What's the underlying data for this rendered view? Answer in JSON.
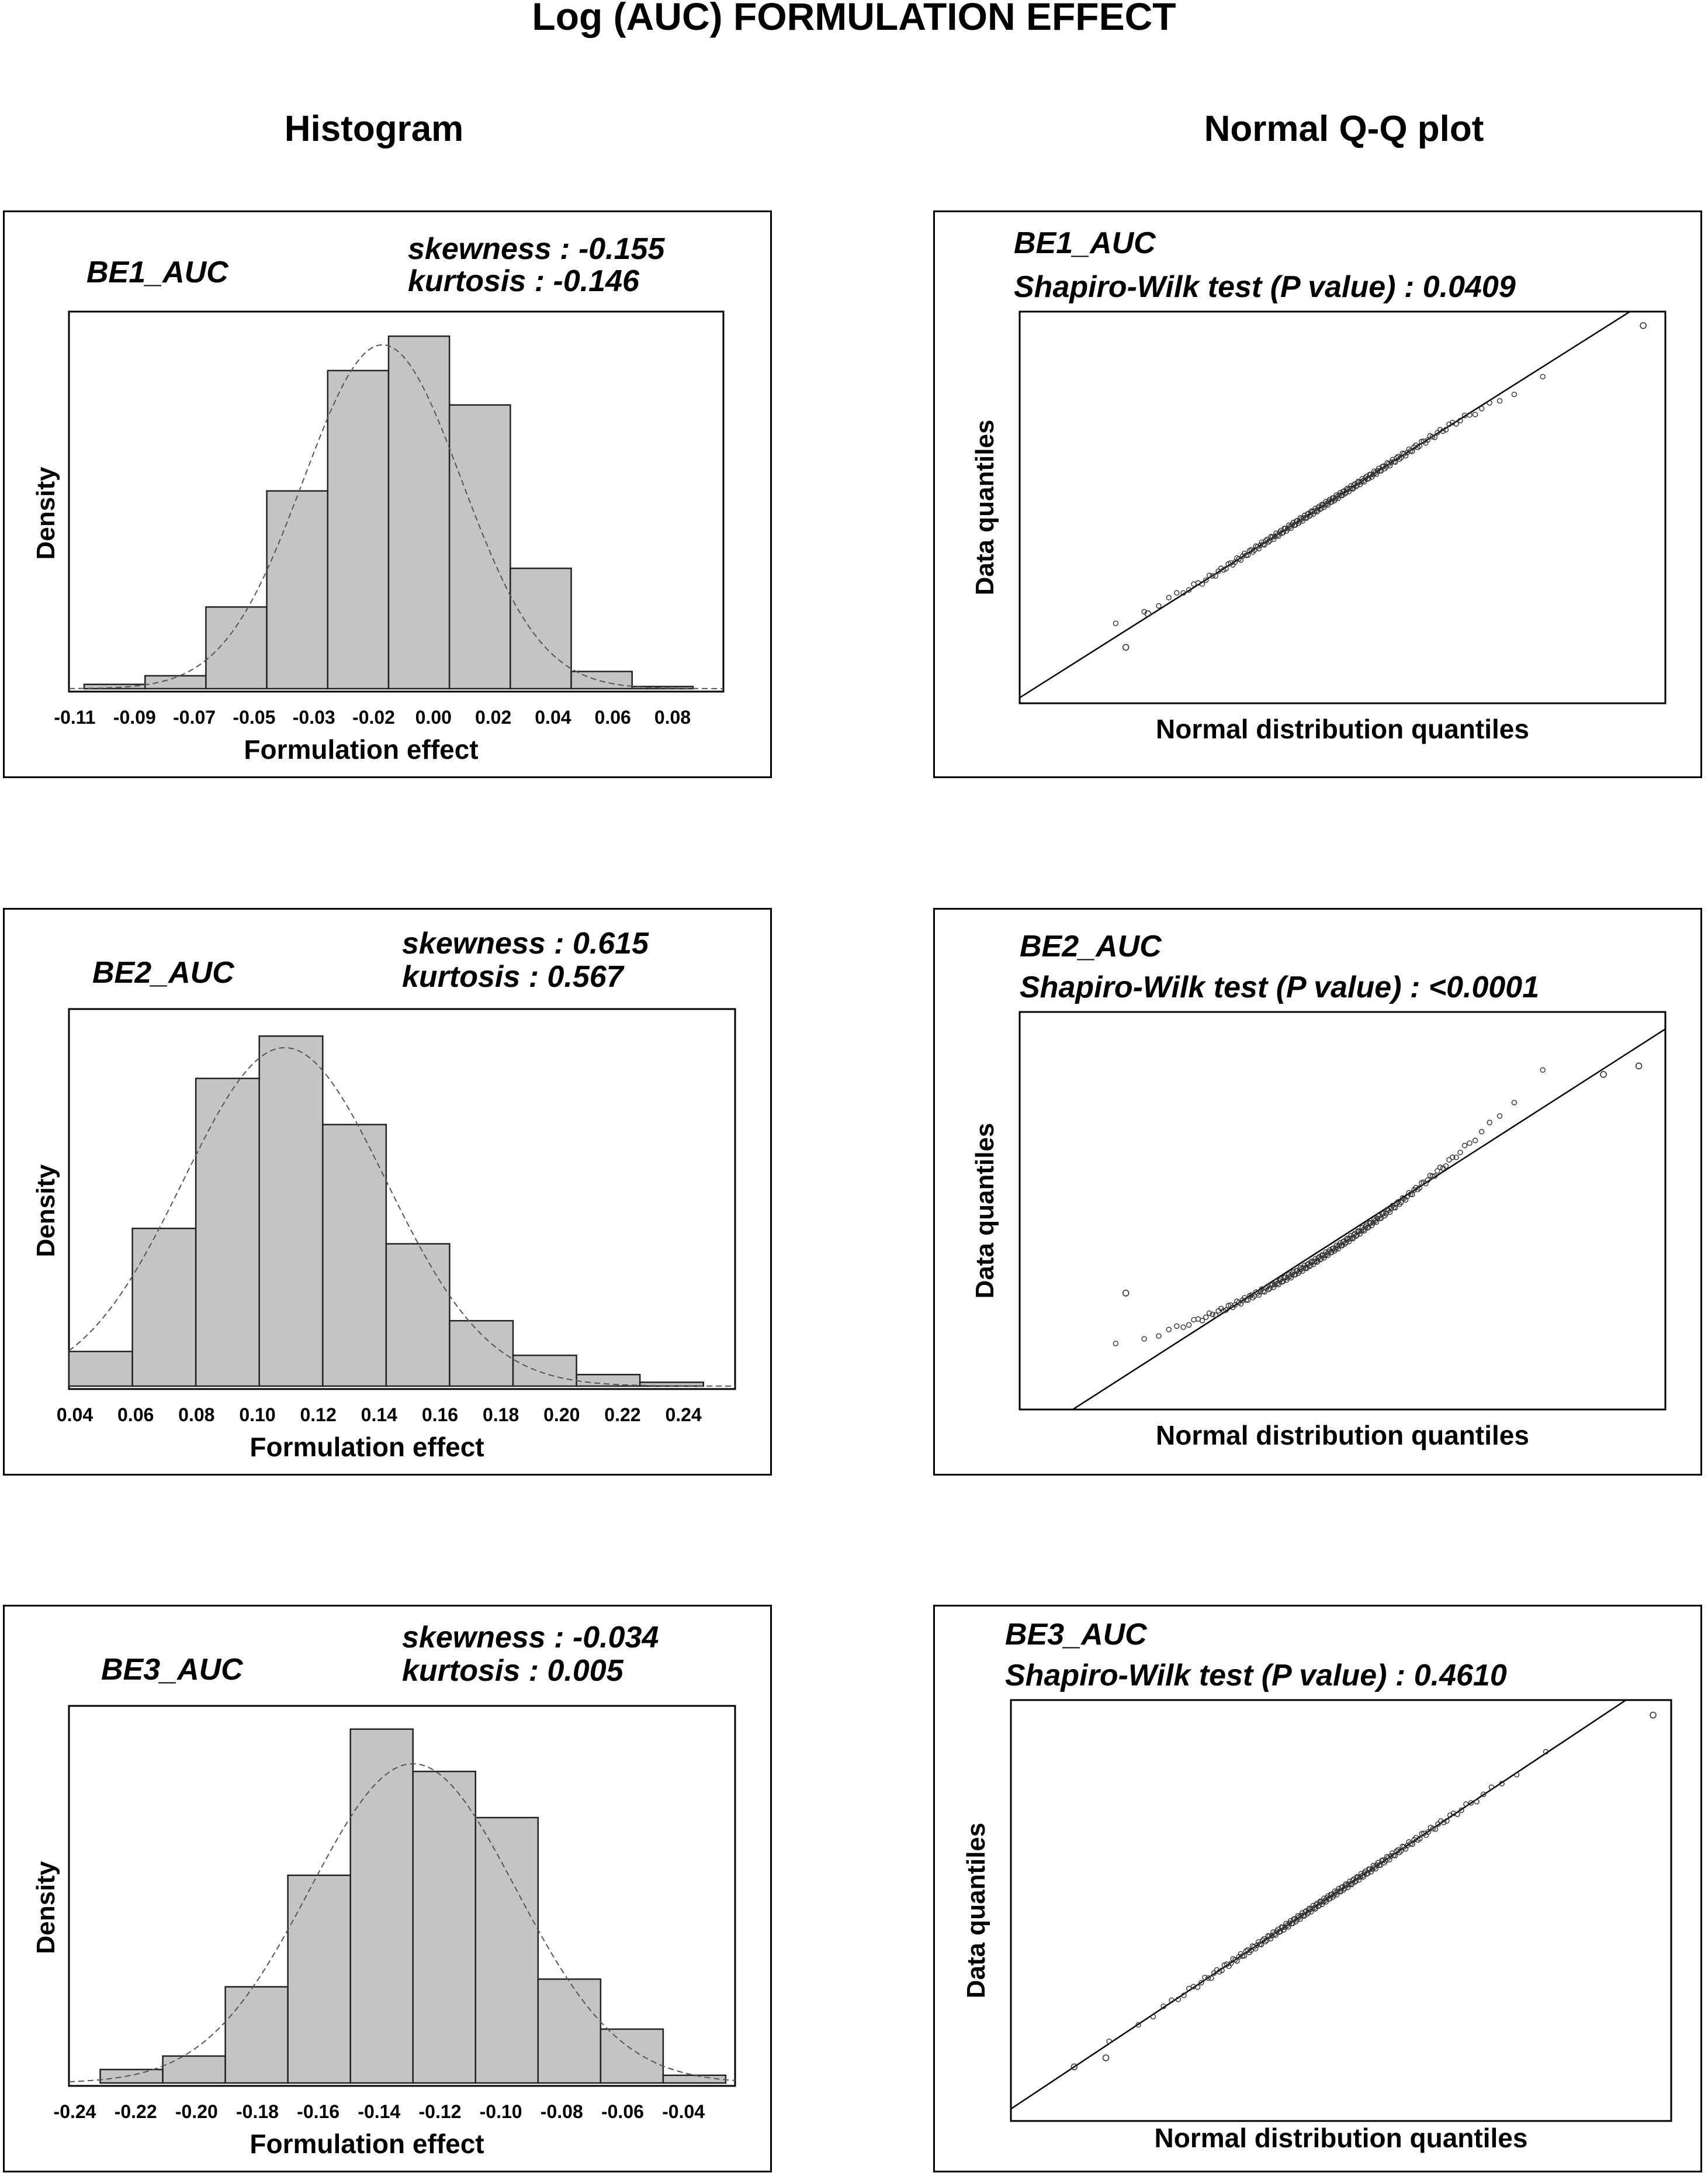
{
  "title": "Log (AUC) FORMULATION EFFECT",
  "columns": {
    "left": "Histogram",
    "right": "Normal Q-Q plot"
  },
  "chart_data": [
    {
      "type": "histogram",
      "name": "BE1_AUC",
      "skewness_label": "skewness : -0.155",
      "kurtosis_label": "kurtosis      : -0.146",
      "xlabel": "Formulation effect",
      "ylabel": "Density",
      "xlim": [
        -0.115,
        0.1
      ],
      "bin_edges": [
        -0.11,
        -0.09,
        -0.07,
        -0.05,
        -0.03,
        -0.01,
        0.01,
        0.03,
        0.05,
        0.07,
        0.09
      ],
      "values": [
        0.01,
        0.03,
        0.19,
        0.46,
        0.74,
        0.82,
        0.66,
        0.28,
        0.04,
        0.005
      ],
      "ymax": 0.85,
      "xticks": [
        "-0.11",
        "-0.09",
        "-0.07",
        "-0.05",
        "-0.03",
        "-0.02",
        "0.00",
        "0.02",
        "0.04",
        "0.06",
        "0.08"
      ],
      "curve": {
        "mean": -0.012,
        "sd": 0.026,
        "peak": 0.8
      }
    },
    {
      "type": "histogram",
      "name": "BE2_AUC",
      "skewness_label": "skewness : 0.615",
      "kurtosis_label": "kurtosis      : 0.567",
      "xlabel": "Formulation effect",
      "ylabel": "Density",
      "xlim": [
        0.04,
        0.25
      ],
      "bin_edges": [
        0.04,
        0.06,
        0.08,
        0.1,
        0.12,
        0.14,
        0.16,
        0.18,
        0.2,
        0.22,
        0.24
      ],
      "values": [
        0.09,
        0.41,
        0.8,
        0.91,
        0.68,
        0.37,
        0.17,
        0.08,
        0.03,
        0.01
      ],
      "ymax": 0.95,
      "xticks": [
        "0.04",
        "0.06",
        "0.08",
        "0.10",
        "0.12",
        "0.14",
        "0.16",
        "0.18",
        "0.20",
        "0.22",
        "0.24"
      ],
      "curve": {
        "mean": 0.108,
        "sd": 0.032,
        "peak": 0.88
      }
    },
    {
      "type": "histogram",
      "name": "BE3_AUC",
      "skewness_label": "skewness : -0.034",
      "kurtosis_label": "kurtosis      : 0.005",
      "xlabel": "Formulation effect",
      "ylabel": "Density",
      "xlim": [
        -0.25,
        -0.037
      ],
      "bin_edges": [
        -0.24,
        -0.22,
        -0.2,
        -0.18,
        -0.16,
        -0.14,
        -0.12,
        -0.1,
        -0.08,
        -0.06,
        -0.04
      ],
      "values": [
        0.035,
        0.07,
        0.25,
        0.54,
        0.92,
        0.81,
        0.69,
        0.27,
        0.14,
        0.02
      ],
      "ymax": 0.95,
      "xticks": [
        "-0.24",
        "-0.22",
        "-0.20",
        "-0.18",
        "-0.16",
        "-0.14",
        "-0.12",
        "-0.10",
        "-0.08",
        "-0.06",
        "-0.04"
      ],
      "curve": {
        "mean": -0.14,
        "sd": 0.033,
        "peak": 0.83
      }
    },
    {
      "type": "scatter",
      "name": "BE1_AUC",
      "test_label": "Shapiro-Wilk test (P value) : 0.0409",
      "xlabel": "Normal distribution quantiles",
      "ylabel": "Data quantiles",
      "xlim": [
        -3.5,
        3.8
      ],
      "ylim": [
        -3.5,
        3.5
      ],
      "line": {
        "slope": 1.0,
        "intercept": 0.1
      },
      "n_points": 200,
      "skew": 0.0,
      "tail_shift": -0.2,
      "outliers": [
        [
          -2.3,
          -2.5
        ],
        [
          -2.05,
          -1.9
        ],
        [
          3.55,
          3.25
        ]
      ]
    },
    {
      "type": "scatter",
      "name": "BE2_AUC",
      "test_label": "Shapiro-Wilk test (P value) : <0.0001",
      "xlabel": "Normal distribution quantiles",
      "ylabel": "Data quantiles",
      "xlim": [
        -3.5,
        3.8
      ],
      "ylim": [
        -3.5,
        3.5
      ],
      "line": {
        "slope": 1.0,
        "intercept": -0.6
      },
      "n_points": 200,
      "skew": 0.22,
      "tail_shift": 0.0,
      "outliers": [
        [
          -2.3,
          -1.45
        ],
        [
          3.1,
          2.4
        ],
        [
          3.5,
          2.55
        ]
      ]
    },
    {
      "type": "scatter",
      "name": "BE3_AUC",
      "test_label": "Shapiro-Wilk test (P value) : 0.4610",
      "xlabel": "Normal distribution quantiles",
      "ylabel": "Data quantiles",
      "xlim": [
        -3.5,
        3.8
      ],
      "ylim": [
        -3.5,
        3.5
      ],
      "line": {
        "slope": 1.0,
        "intercept": 0.2
      },
      "n_points": 200,
      "skew": 0.0,
      "tail_shift": 0.0,
      "outliers": [
        [
          -2.8,
          -2.6
        ],
        [
          -2.45,
          -2.45
        ],
        [
          3.6,
          3.25
        ]
      ]
    }
  ]
}
